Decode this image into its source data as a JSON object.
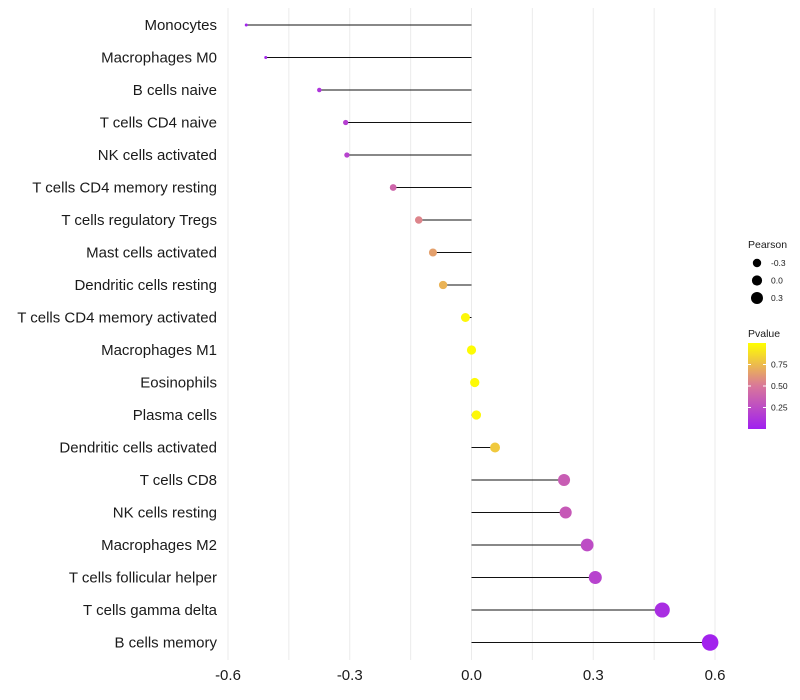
{
  "chart_data": {
    "type": "lollipop",
    "title": "",
    "xlabel": "",
    "ylabel": "",
    "xlim": [
      -0.6,
      0.6
    ],
    "x_ticks": [
      -0.6,
      -0.3,
      0.0,
      0.3,
      0.6
    ],
    "x_tick_labels": [
      "-0.6",
      "-0.3",
      "0.0",
      "0.3",
      "0.6"
    ],
    "grid": "vertical",
    "categories": [
      "Monocytes",
      "Macrophages M0",
      "B cells naive",
      "T cells CD4 naive",
      "NK cells activated",
      "T cells CD4 memory resting",
      "T cells regulatory  Tregs ",
      "Mast cells activated",
      "Dendritic cells resting",
      "T cells CD4 memory activated",
      "Macrophages M1",
      "Eosinophils",
      "Plasma cells",
      "Dendritic cells activated",
      "T cells CD8",
      "NK cells resting",
      "Macrophages M2",
      "T cells follicular helper",
      "T cells gamma delta",
      "B cells memory"
    ],
    "pearson": [
      -0.555,
      -0.507,
      -0.375,
      -0.31,
      -0.307,
      -0.193,
      -0.13,
      -0.095,
      -0.07,
      -0.015,
      0.0,
      0.008,
      0.012,
      0.058,
      0.228,
      0.232,
      0.285,
      0.305,
      0.47,
      0.588
    ],
    "pvalue": [
      0.02,
      0.03,
      0.12,
      0.18,
      0.2,
      0.4,
      0.55,
      0.65,
      0.72,
      0.97,
      0.99,
      0.98,
      0.97,
      0.8,
      0.35,
      0.33,
      0.25,
      0.2,
      0.08,
      0.02
    ],
    "legend": {
      "position": "right",
      "size": {
        "title": "Pearson",
        "entries": [
          {
            "label": "-0.3",
            "value": -0.3
          },
          {
            "label": "0.0",
            "value": 0.0
          },
          {
            "label": "0.3",
            "value": 0.3
          }
        ]
      },
      "color": {
        "title": "Pvalue",
        "ticks": [
          {
            "label": "0.75",
            "value": 0.75
          },
          {
            "label": "0.50",
            "value": 0.5
          },
          {
            "label": "0.25",
            "value": 0.25
          }
        ],
        "range": [
          0.0,
          1.0
        ],
        "low_color": "#a020f0",
        "mid_color": "#d9779a",
        "high_color": "#ffff00"
      }
    }
  }
}
